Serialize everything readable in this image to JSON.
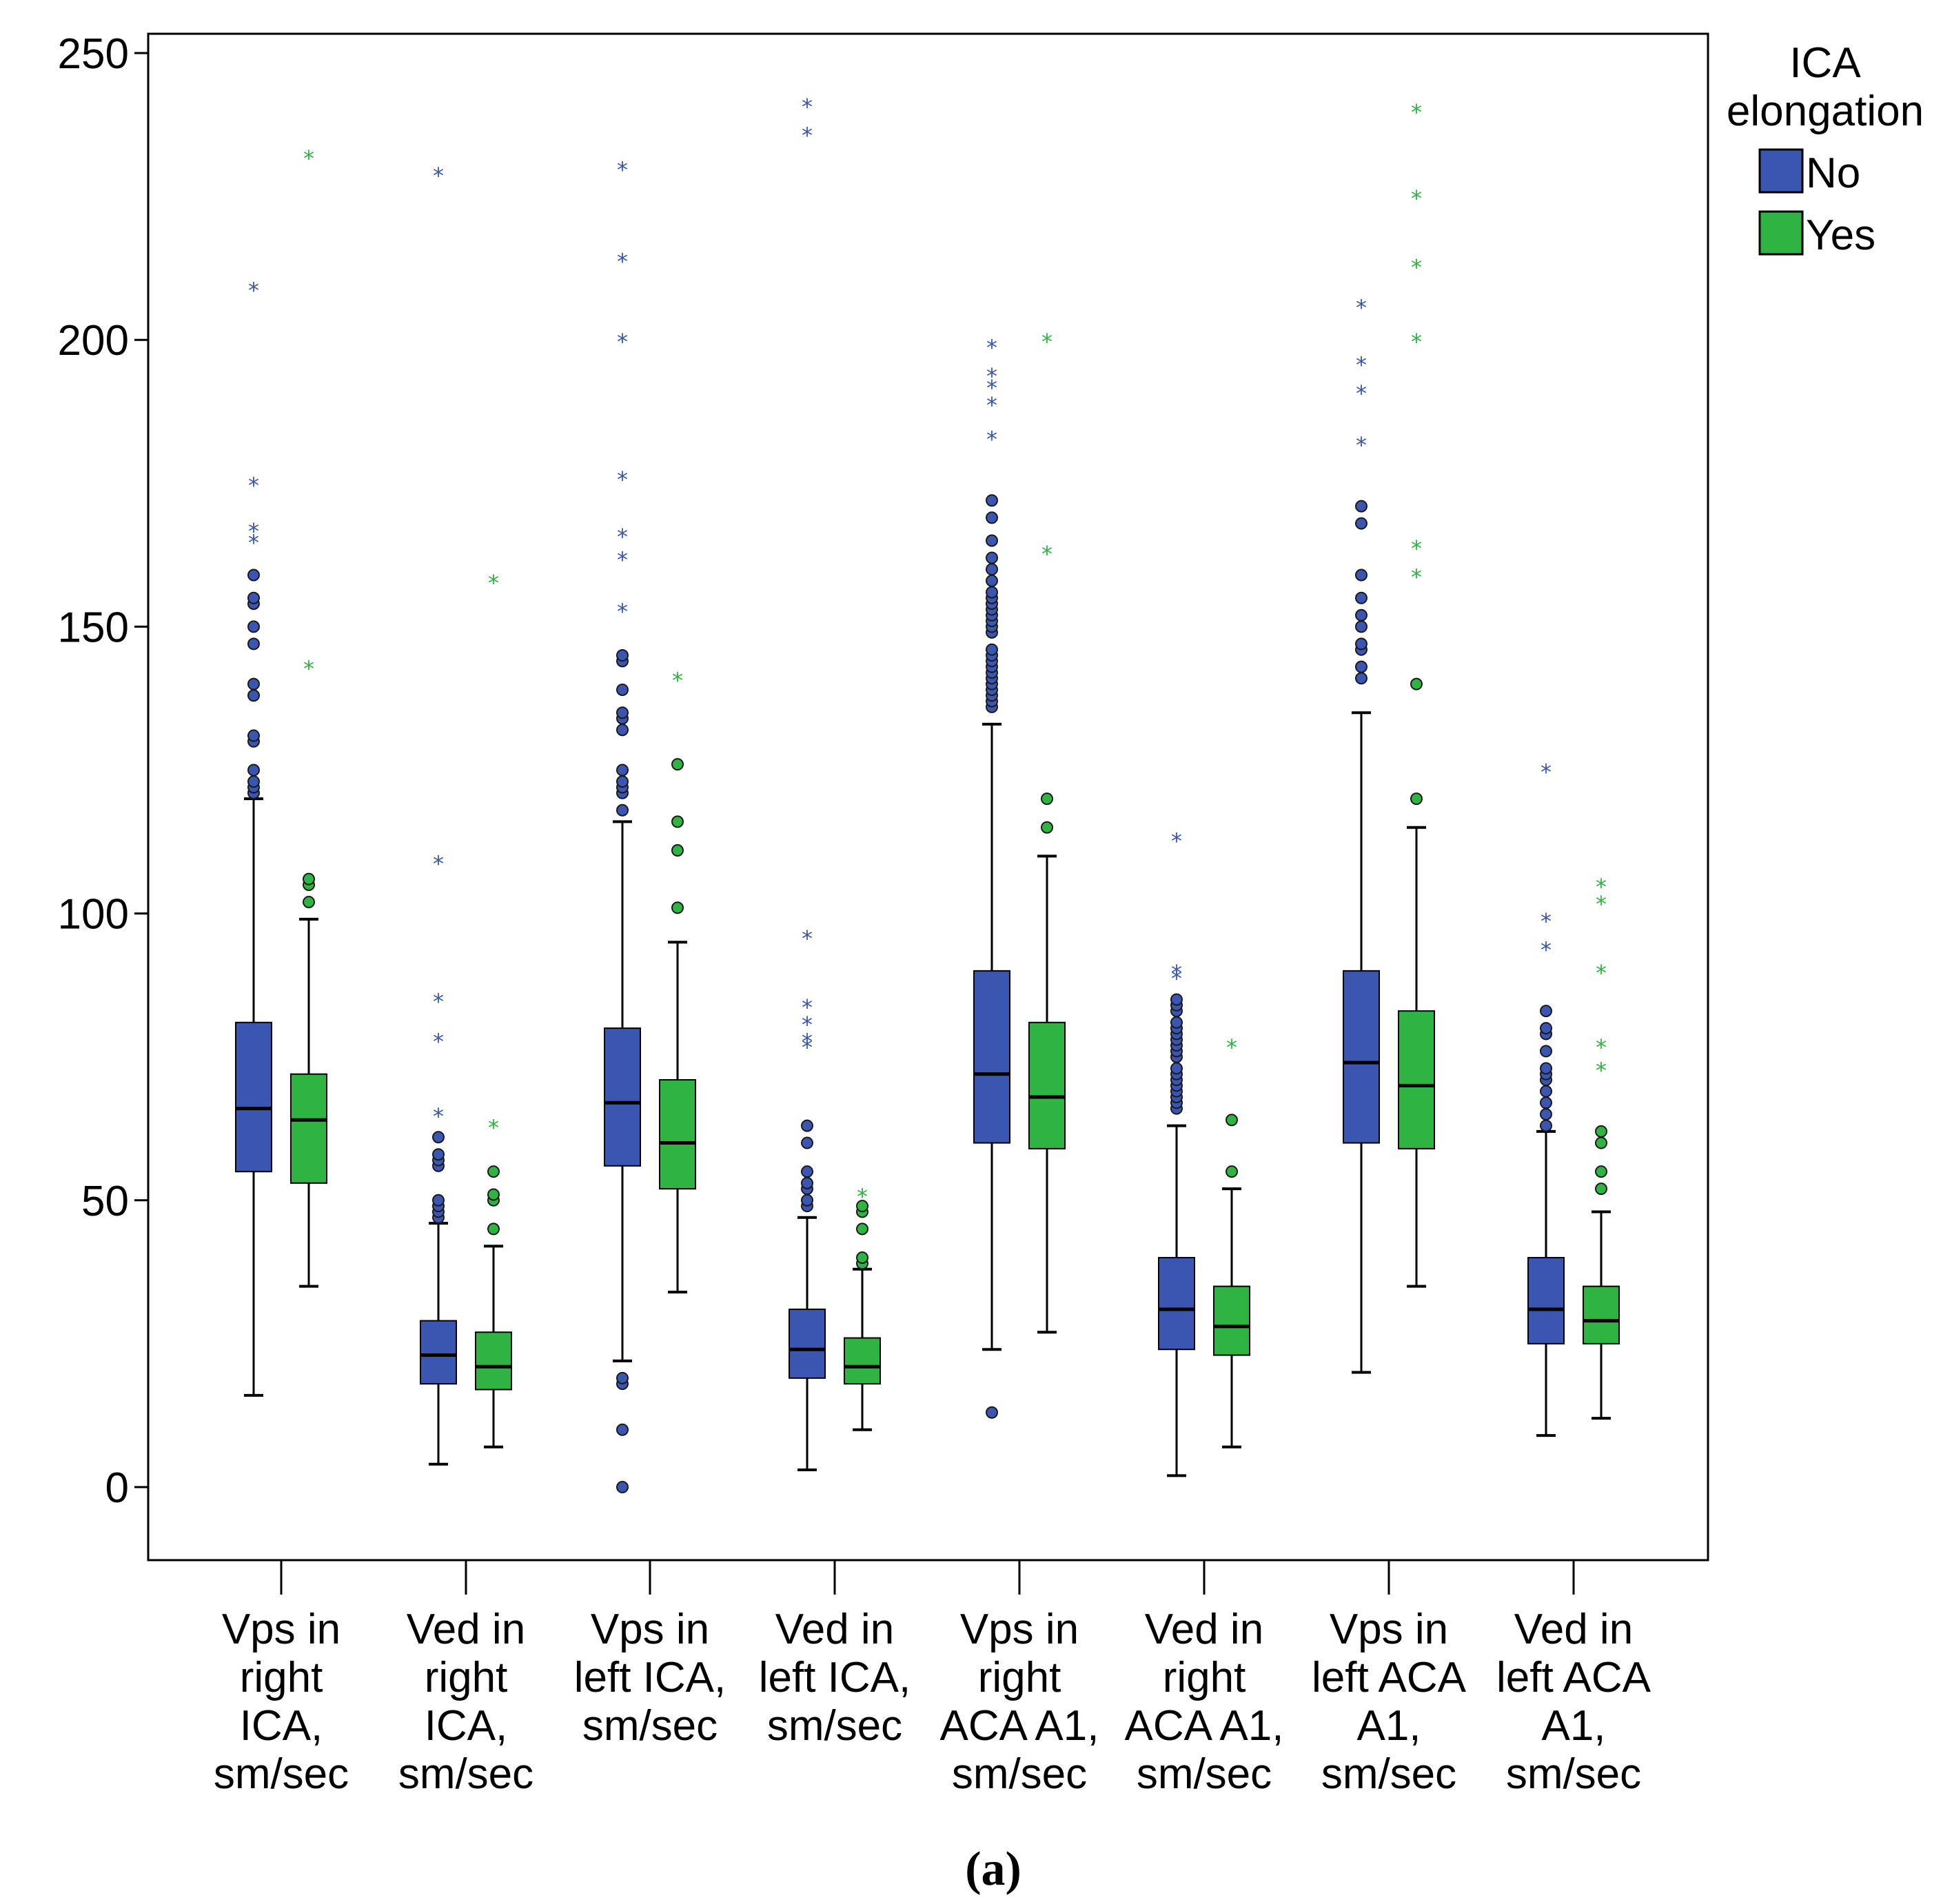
{
  "chart_data": {
    "type": "boxplot",
    "title": "",
    "xlabel": "",
    "ylabel": "",
    "ylim": [
      -13,
      254
    ],
    "y_ticks": [
      0,
      50,
      100,
      150,
      200,
      250
    ],
    "grid": false,
    "legend": {
      "title_lines": [
        "ICA",
        "elongation"
      ],
      "placement": "right",
      "entries": [
        {
          "label": "No",
          "color": "#3a56b0"
        },
        {
          "label": "Yes",
          "color": "#2fb443"
        }
      ]
    },
    "categories": [
      {
        "label_lines": [
          "Vps in",
          "right",
          "ICA,",
          "sm/sec"
        ]
      },
      {
        "label_lines": [
          "Ved in",
          "right",
          "ICA,",
          "sm/sec"
        ]
      },
      {
        "label_lines": [
          "Vps in",
          "left ICA,",
          "sm/sec"
        ]
      },
      {
        "label_lines": [
          "Ved in",
          "left ICA,",
          "sm/sec"
        ]
      },
      {
        "label_lines": [
          "Vps in",
          "right",
          "ACA A1,",
          "sm/sec"
        ]
      },
      {
        "label_lines": [
          "Ved in",
          "right",
          "ACA A1,",
          "sm/sec"
        ]
      },
      {
        "label_lines": [
          "Vps in",
          "left ACA",
          "A1,",
          "sm/sec"
        ]
      },
      {
        "label_lines": [
          "Ved in",
          "left ACA",
          "A1,",
          "sm/sec"
        ]
      }
    ],
    "series": [
      {
        "name": "No",
        "color": "#3a56b0",
        "boxes": [
          {
            "whisker_low": 16,
            "q1": 55,
            "median": 66,
            "q3": 81,
            "whisker_high": 120,
            "outliers": [
              121,
              122,
              123,
              125,
              130,
              131,
              138,
              140,
              147,
              150,
              154,
              155,
              159
            ],
            "extremes": [
              165,
              167,
              175,
              209
            ]
          },
          {
            "whisker_low": 4,
            "q1": 18,
            "median": 23,
            "q3": 29,
            "whisker_high": 46,
            "outliers": [
              47,
              48,
              49,
              50,
              56,
              57,
              58,
              61
            ],
            "extremes": [
              65,
              78,
              85,
              109,
              229
            ]
          },
          {
            "whisker_low": 22,
            "q1": 56,
            "median": 67,
            "q3": 80,
            "whisker_high": 116,
            "outliers": [
              0,
              10,
              18,
              19,
              118,
              121,
              122,
              123,
              125,
              132,
              134,
              135,
              139,
              144,
              145
            ],
            "extremes": [
              153,
              162,
              166,
              176,
              200,
              214,
              230
            ]
          },
          {
            "whisker_low": 3,
            "q1": 19,
            "median": 24,
            "q3": 31,
            "whisker_high": 47,
            "outliers": [
              49,
              50,
              52,
              53,
              55,
              60,
              63
            ],
            "extremes": [
              77,
              78,
              81,
              84,
              96,
              236,
              241
            ]
          },
          {
            "whisker_low": 24,
            "q1": 60,
            "median": 72,
            "q3": 90,
            "whisker_high": 133,
            "outliers": [
              13,
              136,
              137,
              138,
              139,
              140,
              141,
              142,
              143,
              144,
              145,
              146,
              149,
              150,
              151,
              152,
              153,
              154,
              155,
              156,
              158,
              160,
              162,
              165,
              169,
              172
            ],
            "extremes": [
              183,
              189,
              192,
              194,
              199
            ]
          },
          {
            "whisker_low": 2,
            "q1": 24,
            "median": 31,
            "q3": 40,
            "whisker_high": 63,
            "outliers": [
              66,
              67,
              68,
              69,
              70,
              71,
              72,
              73,
              75,
              76,
              77,
              78,
              79,
              80,
              81,
              83,
              84,
              85
            ],
            "extremes": [
              89,
              90,
              113
            ]
          },
          {
            "whisker_low": 20,
            "q1": 60,
            "median": 74,
            "q3": 90,
            "whisker_high": 135,
            "outliers": [
              141,
              143,
              146,
              147,
              150,
              152,
              155,
              159,
              168,
              171
            ],
            "extremes": [
              182,
              191,
              196,
              206
            ]
          },
          {
            "whisker_low": 9,
            "q1": 25,
            "median": 31,
            "q3": 40,
            "whisker_high": 62,
            "outliers": [
              63,
              65,
              67,
              69,
              71,
              72,
              73,
              76,
              79,
              80,
              83
            ],
            "extremes": [
              94,
              99,
              125
            ]
          }
        ]
      },
      {
        "name": "Yes",
        "color": "#2fb443",
        "boxes": [
          {
            "whisker_low": 35,
            "q1": 53,
            "median": 64,
            "q3": 72,
            "whisker_high": 99,
            "outliers": [
              102,
              105,
              106
            ],
            "extremes": [
              143,
              232
            ]
          },
          {
            "whisker_low": 7,
            "q1": 17,
            "median": 21,
            "q3": 27,
            "whisker_high": 42,
            "outliers": [
              45,
              50,
              51,
              55
            ],
            "extremes": [
              63,
              158
            ]
          },
          {
            "whisker_low": 34,
            "q1": 52,
            "median": 60,
            "q3": 71,
            "whisker_high": 95,
            "outliers": [
              101,
              111,
              116,
              126
            ],
            "extremes": [
              141
            ]
          },
          {
            "whisker_low": 10,
            "q1": 18,
            "median": 21,
            "q3": 26,
            "whisker_high": 38,
            "outliers": [
              39,
              40,
              45,
              48,
              49
            ],
            "extremes": [
              51
            ]
          },
          {
            "whisker_low": 27,
            "q1": 59,
            "median": 68,
            "q3": 81,
            "whisker_high": 110,
            "outliers": [
              115,
              120
            ],
            "extremes": [
              163,
              200
            ]
          },
          {
            "whisker_low": 7,
            "q1": 23,
            "median": 28,
            "q3": 35,
            "whisker_high": 52,
            "outliers": [
              55,
              64
            ],
            "extremes": [
              77
            ]
          },
          {
            "whisker_low": 35,
            "q1": 59,
            "median": 70,
            "q3": 83,
            "whisker_high": 115,
            "outliers": [
              120,
              140
            ],
            "extremes": [
              159,
              164,
              200,
              213,
              225,
              240
            ]
          },
          {
            "whisker_low": 12,
            "q1": 25,
            "median": 29,
            "q3": 35,
            "whisker_high": 48,
            "outliers": [
              52,
              55,
              60,
              62
            ],
            "extremes": [
              73,
              77,
              90,
              102,
              105
            ]
          }
        ]
      }
    ]
  },
  "caption": "(a)"
}
